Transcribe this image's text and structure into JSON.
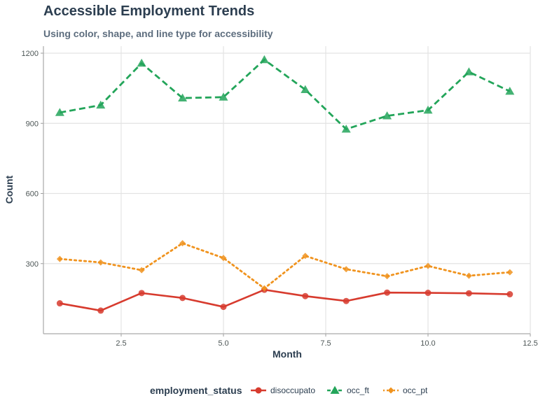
{
  "chart_data": {
    "type": "line",
    "title": "Accessible Employment Trends",
    "subtitle": "Using color, shape, and line type for accessibility",
    "xlabel": "Month",
    "ylabel": "Count",
    "xlim": [
      0.6,
      12.5
    ],
    "ylim": [
      0,
      1230
    ],
    "x_ticks": [
      2.5,
      5.0,
      7.5,
      10.0,
      12.5
    ],
    "x_tick_labels": [
      "2.5",
      "5.0",
      "7.5",
      "10.0",
      "12.5"
    ],
    "y_ticks": [
      300,
      600,
      900,
      1200
    ],
    "y_tick_labels": [
      "300",
      "600",
      "900",
      "1200"
    ],
    "grid": true,
    "legend_placement": "bottom",
    "legend_title": "employment_status",
    "x": [
      1,
      2,
      3,
      4,
      5,
      6,
      7,
      8,
      9,
      10,
      11,
      12
    ],
    "series": [
      {
        "name": "disoccupato",
        "color": "#d73b2e",
        "marker": "circle",
        "line": "solid",
        "values": [
          130,
          99,
          174,
          153,
          115,
          188,
          161,
          140,
          176,
          175,
          173,
          169
        ]
      },
      {
        "name": "occ_ft",
        "color": "#23a55a",
        "marker": "triangle",
        "line": "dashed",
        "values": [
          946,
          978,
          1157,
          1008,
          1012,
          1172,
          1044,
          875,
          932,
          956,
          1120,
          1037
        ]
      },
      {
        "name": "occ_pt",
        "color": "#f0931e",
        "marker": "diamond",
        "line": "dotted",
        "values": [
          320,
          305,
          272,
          387,
          324,
          194,
          333,
          276,
          246,
          290,
          248,
          263
        ]
      }
    ]
  }
}
